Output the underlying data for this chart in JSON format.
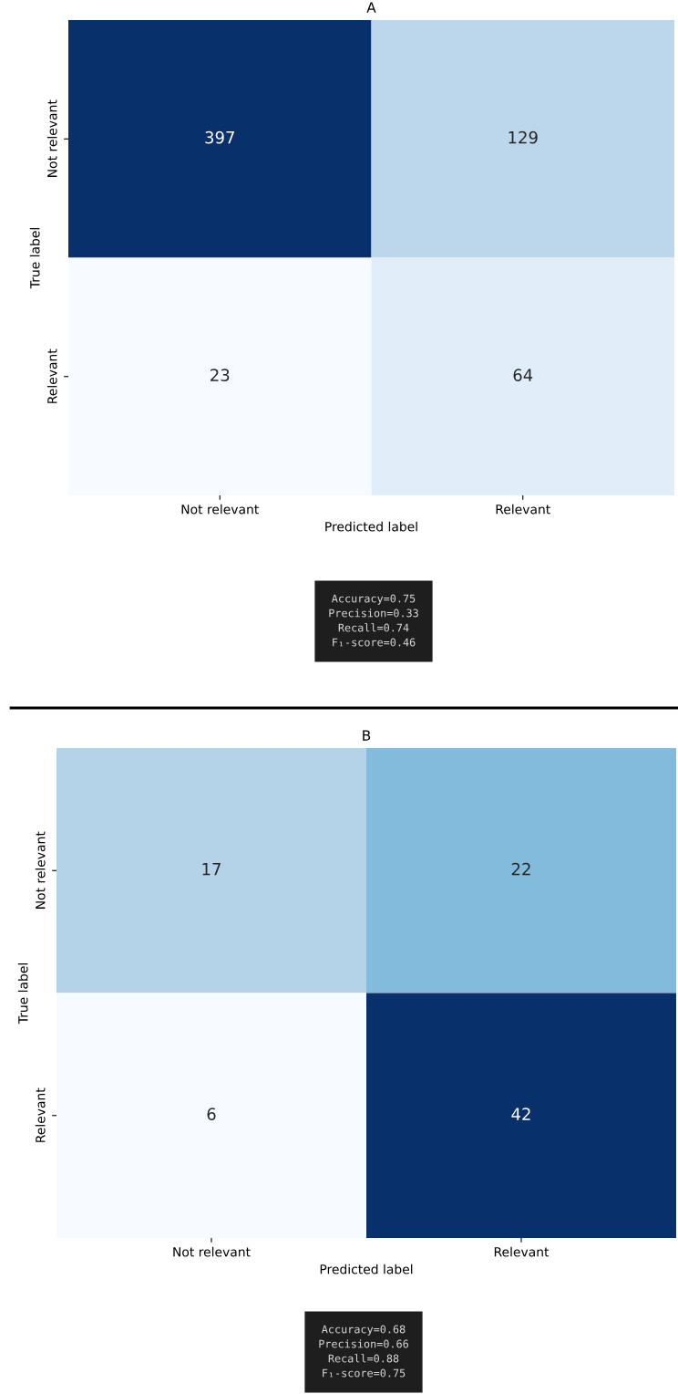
{
  "chart_data": [
    {
      "type": "heatmap",
      "title": "A",
      "xlabel": "Predicted label",
      "ylabel": "True label",
      "categories": [
        "Not relevant",
        "Relevant"
      ],
      "y_categories": [
        "Not relevant",
        "Relevant"
      ],
      "cells": [
        [
          397,
          129
        ],
        [
          23,
          64
        ]
      ],
      "data_labels": true,
      "annotations": [
        "Accuracy=0.75",
        "Precision=0.33",
        "Recall=0.74",
        "F₁-score=0.46"
      ]
    },
    {
      "type": "heatmap",
      "title": "B",
      "xlabel": "Predicted label",
      "ylabel": "True label",
      "categories": [
        "Not relevant",
        "Relevant"
      ],
      "y_categories": [
        "Not relevant",
        "Relevant"
      ],
      "cells": [
        [
          17,
          22
        ],
        [
          6,
          42
        ]
      ],
      "data_labels": true,
      "annotations": [
        "Accuracy=0.68",
        "Precision=0.66",
        "Recall=0.88",
        "F₁-score=0.75"
      ]
    }
  ]
}
